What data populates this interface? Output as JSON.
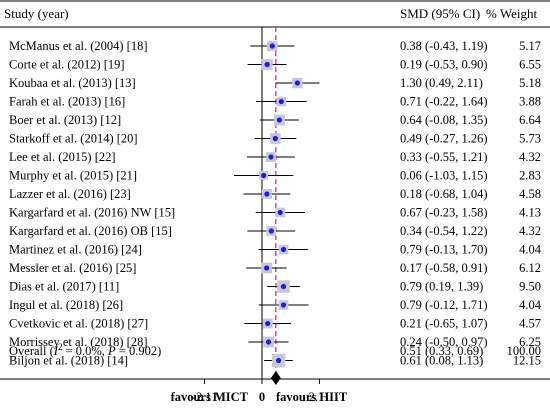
{
  "chart_data": {
    "type": "forest",
    "headers": {
      "study": "Study (year)",
      "smd": "SMD (95% CI)",
      "weight": "% Weight"
    },
    "studies": [
      {
        "label": "McManus et al. (2004) [18]",
        "smd": 0.38,
        "lower": -0.43,
        "upper": 1.19,
        "smd_text": "0.38 (-0.43, 1.19)",
        "weight": "5.17"
      },
      {
        "label": "Corte et al. (2012) [19]",
        "smd": 0.19,
        "lower": -0.53,
        "upper": 0.9,
        "smd_text": "0.19 (-0.53, 0.90)",
        "weight": "6.55"
      },
      {
        "label": "Koubaa et al. (2013) [13]",
        "smd": 1.3,
        "lower": 0.49,
        "upper": 2.11,
        "smd_text": "1.30 (0.49, 2.11)",
        "weight": "5.18"
      },
      {
        "label": "Farah et al. (2013) [16]",
        "smd": 0.71,
        "lower": -0.22,
        "upper": 1.64,
        "smd_text": "0.71 (-0.22, 1.64)",
        "weight": "3.88"
      },
      {
        "label": "Boer et al. (2013) [12]",
        "smd": 0.64,
        "lower": -0.08,
        "upper": 1.35,
        "smd_text": "0.64 (-0.08, 1.35)",
        "weight": "6.64"
      },
      {
        "label": "Starkoff et al. (2014) [20]",
        "smd": 0.49,
        "lower": -0.27,
        "upper": 1.26,
        "smd_text": "0.49 (-0.27, 1.26)",
        "weight": "5.73"
      },
      {
        "label": "Lee et al. (2015) [22]",
        "smd": 0.33,
        "lower": -0.55,
        "upper": 1.21,
        "smd_text": "0.33 (-0.55, 1.21)",
        "weight": "4.32"
      },
      {
        "label": "Murphy et al. (2015) [21]",
        "smd": 0.06,
        "lower": -1.03,
        "upper": 1.15,
        "smd_text": "0.06 (-1.03, 1.15)",
        "weight": "2.83"
      },
      {
        "label": "Lazzer et al. (2016) [23]",
        "smd": 0.18,
        "lower": -0.68,
        "upper": 1.04,
        "smd_text": "0.18 (-0.68, 1.04)",
        "weight": "4.58"
      },
      {
        "label": "Kargarfard et al. (2016) NW [15]",
        "smd": 0.67,
        "lower": -0.23,
        "upper": 1.58,
        "smd_text": "0.67 (-0.23, 1.58)",
        "weight": "4.13"
      },
      {
        "label": "Kargarfard et al. (2016) OB [15]",
        "smd": 0.34,
        "lower": -0.54,
        "upper": 1.22,
        "smd_text": "0.34 (-0.54, 1.22)",
        "weight": "4.32"
      },
      {
        "label": "Martinez et al. (2016) [24]",
        "smd": 0.79,
        "lower": -0.13,
        "upper": 1.7,
        "smd_text": "0.79 (-0.13, 1.70)",
        "weight": "4.04"
      },
      {
        "label": "Messler et al. (2016) [25]",
        "smd": 0.17,
        "lower": -0.58,
        "upper": 0.91,
        "smd_text": "0.17 (-0.58, 0.91)",
        "weight": "6.12"
      },
      {
        "label": "Dias et al. (2017) [11]",
        "smd": 0.79,
        "lower": 0.19,
        "upper": 1.39,
        "smd_text": "0.79 (0.19, 1.39)",
        "weight": "9.50"
      },
      {
        "label": "Ingul et al. (2018) [26]",
        "smd": 0.79,
        "lower": -0.12,
        "upper": 1.71,
        "smd_text": "0.79 (-0.12, 1.71)",
        "weight": "4.04"
      },
      {
        "label": "Cvetkovic et al. (2018) [27]",
        "smd": 0.21,
        "lower": -0.65,
        "upper": 1.07,
        "smd_text": "0.21 (-0.65, 1.07)",
        "weight": "4.57"
      },
      {
        "label": "Morrissey et al. (2018) [28]",
        "smd": 0.24,
        "lower": -0.5,
        "upper": 0.97,
        "smd_text": "0.24 (-0.50, 0.97)",
        "weight": "6.25"
      },
      {
        "label": "Biljon et al. (2018) [14]",
        "smd": 0.61,
        "lower": 0.08,
        "upper": 1.13,
        "smd_text": "0.61 (0.08, 1.13)",
        "weight": "12.15"
      }
    ],
    "overall": {
      "label_prefix": "Overall (",
      "i2_symbol": "I",
      "i2_sup": "2",
      "label_rest": " = 0.0%, ",
      "p_symbol": "P",
      "label_end": " = 0.902)",
      "smd": 0.51,
      "lower": 0.33,
      "upper": 0.69,
      "smd_text": "0.51 (0.33, 0.69)",
      "weight": "100.00"
    },
    "xlim": [
      -2.11,
      2.11
    ],
    "ticks": [
      {
        "value": -2.11,
        "label": "-2.11"
      },
      {
        "value": 0,
        "label": "0"
      },
      {
        "value": 2.11,
        "label": "2.11"
      }
    ],
    "favours_left": "favours MICT",
    "favours_right": "favours HIIT",
    "colors": {
      "point": "#2020d0",
      "box": "#c8c8d8",
      "overall_line": "#c0287a",
      "diamond": "#000000"
    }
  }
}
